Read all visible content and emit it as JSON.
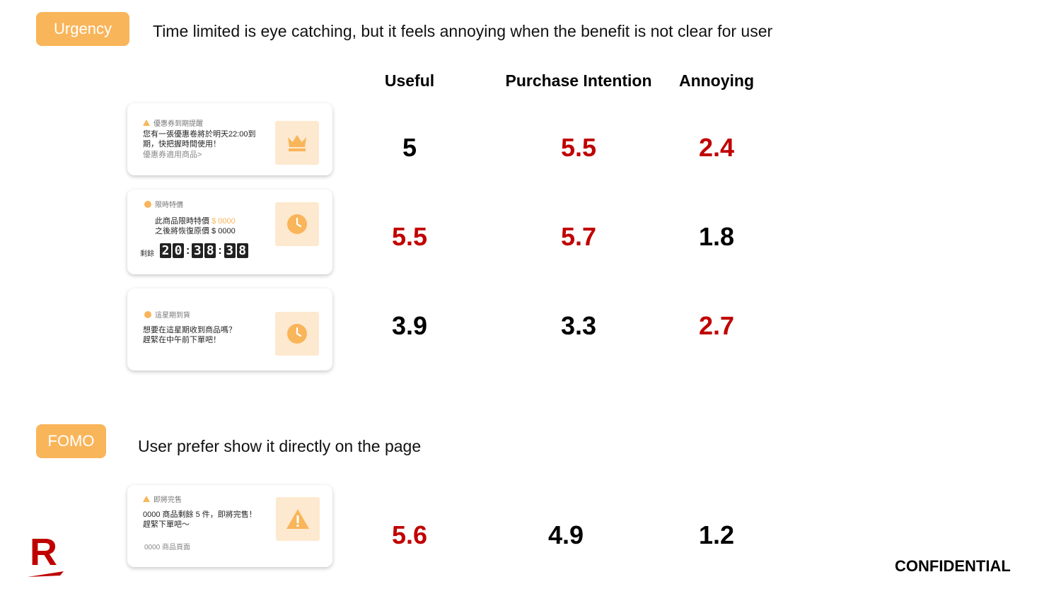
{
  "sections": {
    "urgency": {
      "tag": "Urgency",
      "heading": "Time limited is eye catching, but it feels annoying when the benefit is not clear for user"
    },
    "fomo": {
      "tag": "FOMO",
      "heading": "User prefer show it directly on the page"
    }
  },
  "columns": [
    "Useful",
    "Purchase Intention",
    "Annoying"
  ],
  "cards": {
    "coupon": {
      "tag": "優惠券到期提醒",
      "line1": "您有一張優惠卷將於明天22:00到",
      "line2": "期，快把握時間使用！",
      "link": "優惠券適用商品>",
      "icon": "crown-icon"
    },
    "limited": {
      "tag": "限時特價",
      "line1_prefix": "此商品限時特價 ",
      "line1_price": "$ 0000",
      "line2": "之後將恢復原價 $ 0000",
      "timer_label": "剩餘",
      "timer": [
        "2",
        "0",
        "3",
        "8",
        "3",
        "8"
      ],
      "icon": "clock-icon"
    },
    "week": {
      "tag": "這星期到貨",
      "line1": "想要在這星期收到商品嗎？",
      "line2": "趕緊在中午前下單吧！",
      "icon": "clock-icon"
    },
    "soldout": {
      "tag": "即將完售",
      "line1": "0000 商品剩餘 5 件，即將完售！",
      "line2": "趕緊下單吧～",
      "link": "0000 商品頁面",
      "icon": "warning-icon"
    }
  },
  "scores": {
    "coupon": {
      "useful": "5",
      "purchase": "5.5",
      "annoying": "2.4"
    },
    "limited": {
      "useful": "5.5",
      "purchase": "5.7",
      "annoying": "1.8"
    },
    "week": {
      "useful": "3.9",
      "purchase": "3.3",
      "annoying": "2.7"
    },
    "soldout": {
      "useful": "5.6",
      "purchase": "4.9",
      "annoying": "1.2"
    }
  },
  "colors": {
    "accent": "#f9b55a",
    "highlight_red": "#c00000",
    "brand_red": "#bf0000"
  },
  "footer": {
    "logo_letter": "R",
    "confidential": "CONFIDENTIAL"
  }
}
